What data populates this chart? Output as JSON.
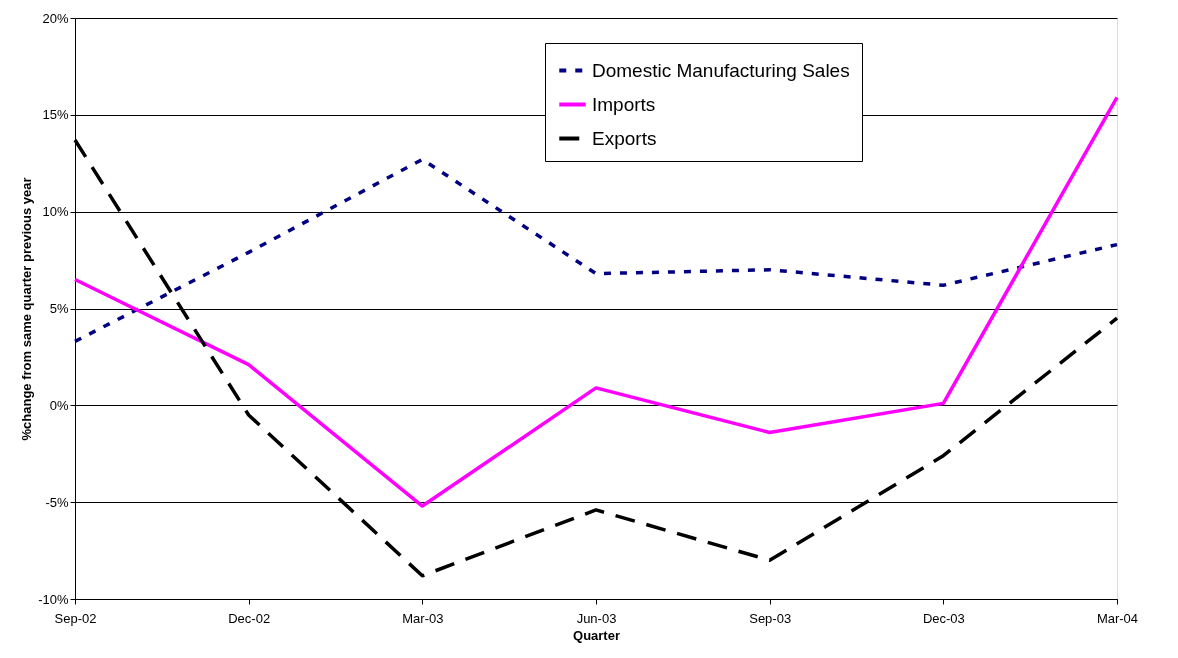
{
  "chart_data": {
    "type": "line",
    "xlabel": "Quarter",
    "ylabel": "%change from same quarter previous year",
    "categories": [
      "Sep-02",
      "Dec-02",
      "Mar-03",
      "Jun-03",
      "Sep-03",
      "Dec-03",
      "Mar-04"
    ],
    "series": [
      {
        "name": "Domestic Manufacturing Sales",
        "color": "#000080",
        "line_style": "dotted",
        "values": [
          3.3,
          7.9,
          12.7,
          6.8,
          7.0,
          6.2,
          8.3
        ]
      },
      {
        "name": "Imports",
        "color": "#ff00ff",
        "line_style": "solid",
        "values": [
          6.5,
          2.1,
          -5.2,
          0.9,
          -1.4,
          0.1,
          15.9
        ]
      },
      {
        "name": "Exports",
        "color": "#000000",
        "line_style": "dashed",
        "values": [
          13.7,
          -0.5,
          -8.8,
          -5.4,
          -8.0,
          -2.6,
          4.5
        ]
      }
    ],
    "ylim": [
      -10,
      20
    ],
    "yticks": [
      {
        "value": -10,
        "label": "-10%"
      },
      {
        "value": -5,
        "label": "-5%"
      },
      {
        "value": 0,
        "label": "0%"
      },
      {
        "value": 5,
        "label": "5%"
      },
      {
        "value": 10,
        "label": "10%"
      },
      {
        "value": 15,
        "label": "15%"
      },
      {
        "value": 20,
        "label": "20%"
      }
    ],
    "grid": "y",
    "legend": "top right",
    "marker": "none"
  }
}
